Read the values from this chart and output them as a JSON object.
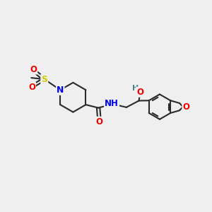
{
  "bg_color": "#efefef",
  "bond_color": "#2a2a2a",
  "bond_width": 1.5,
  "atom_colors": {
    "N": "#0000ee",
    "O": "#ee0000",
    "S": "#cccc00",
    "H": "#4a8888",
    "C": "#2a2a2a"
  },
  "figsize": [
    3.0,
    3.0
  ],
  "dpi": 100
}
